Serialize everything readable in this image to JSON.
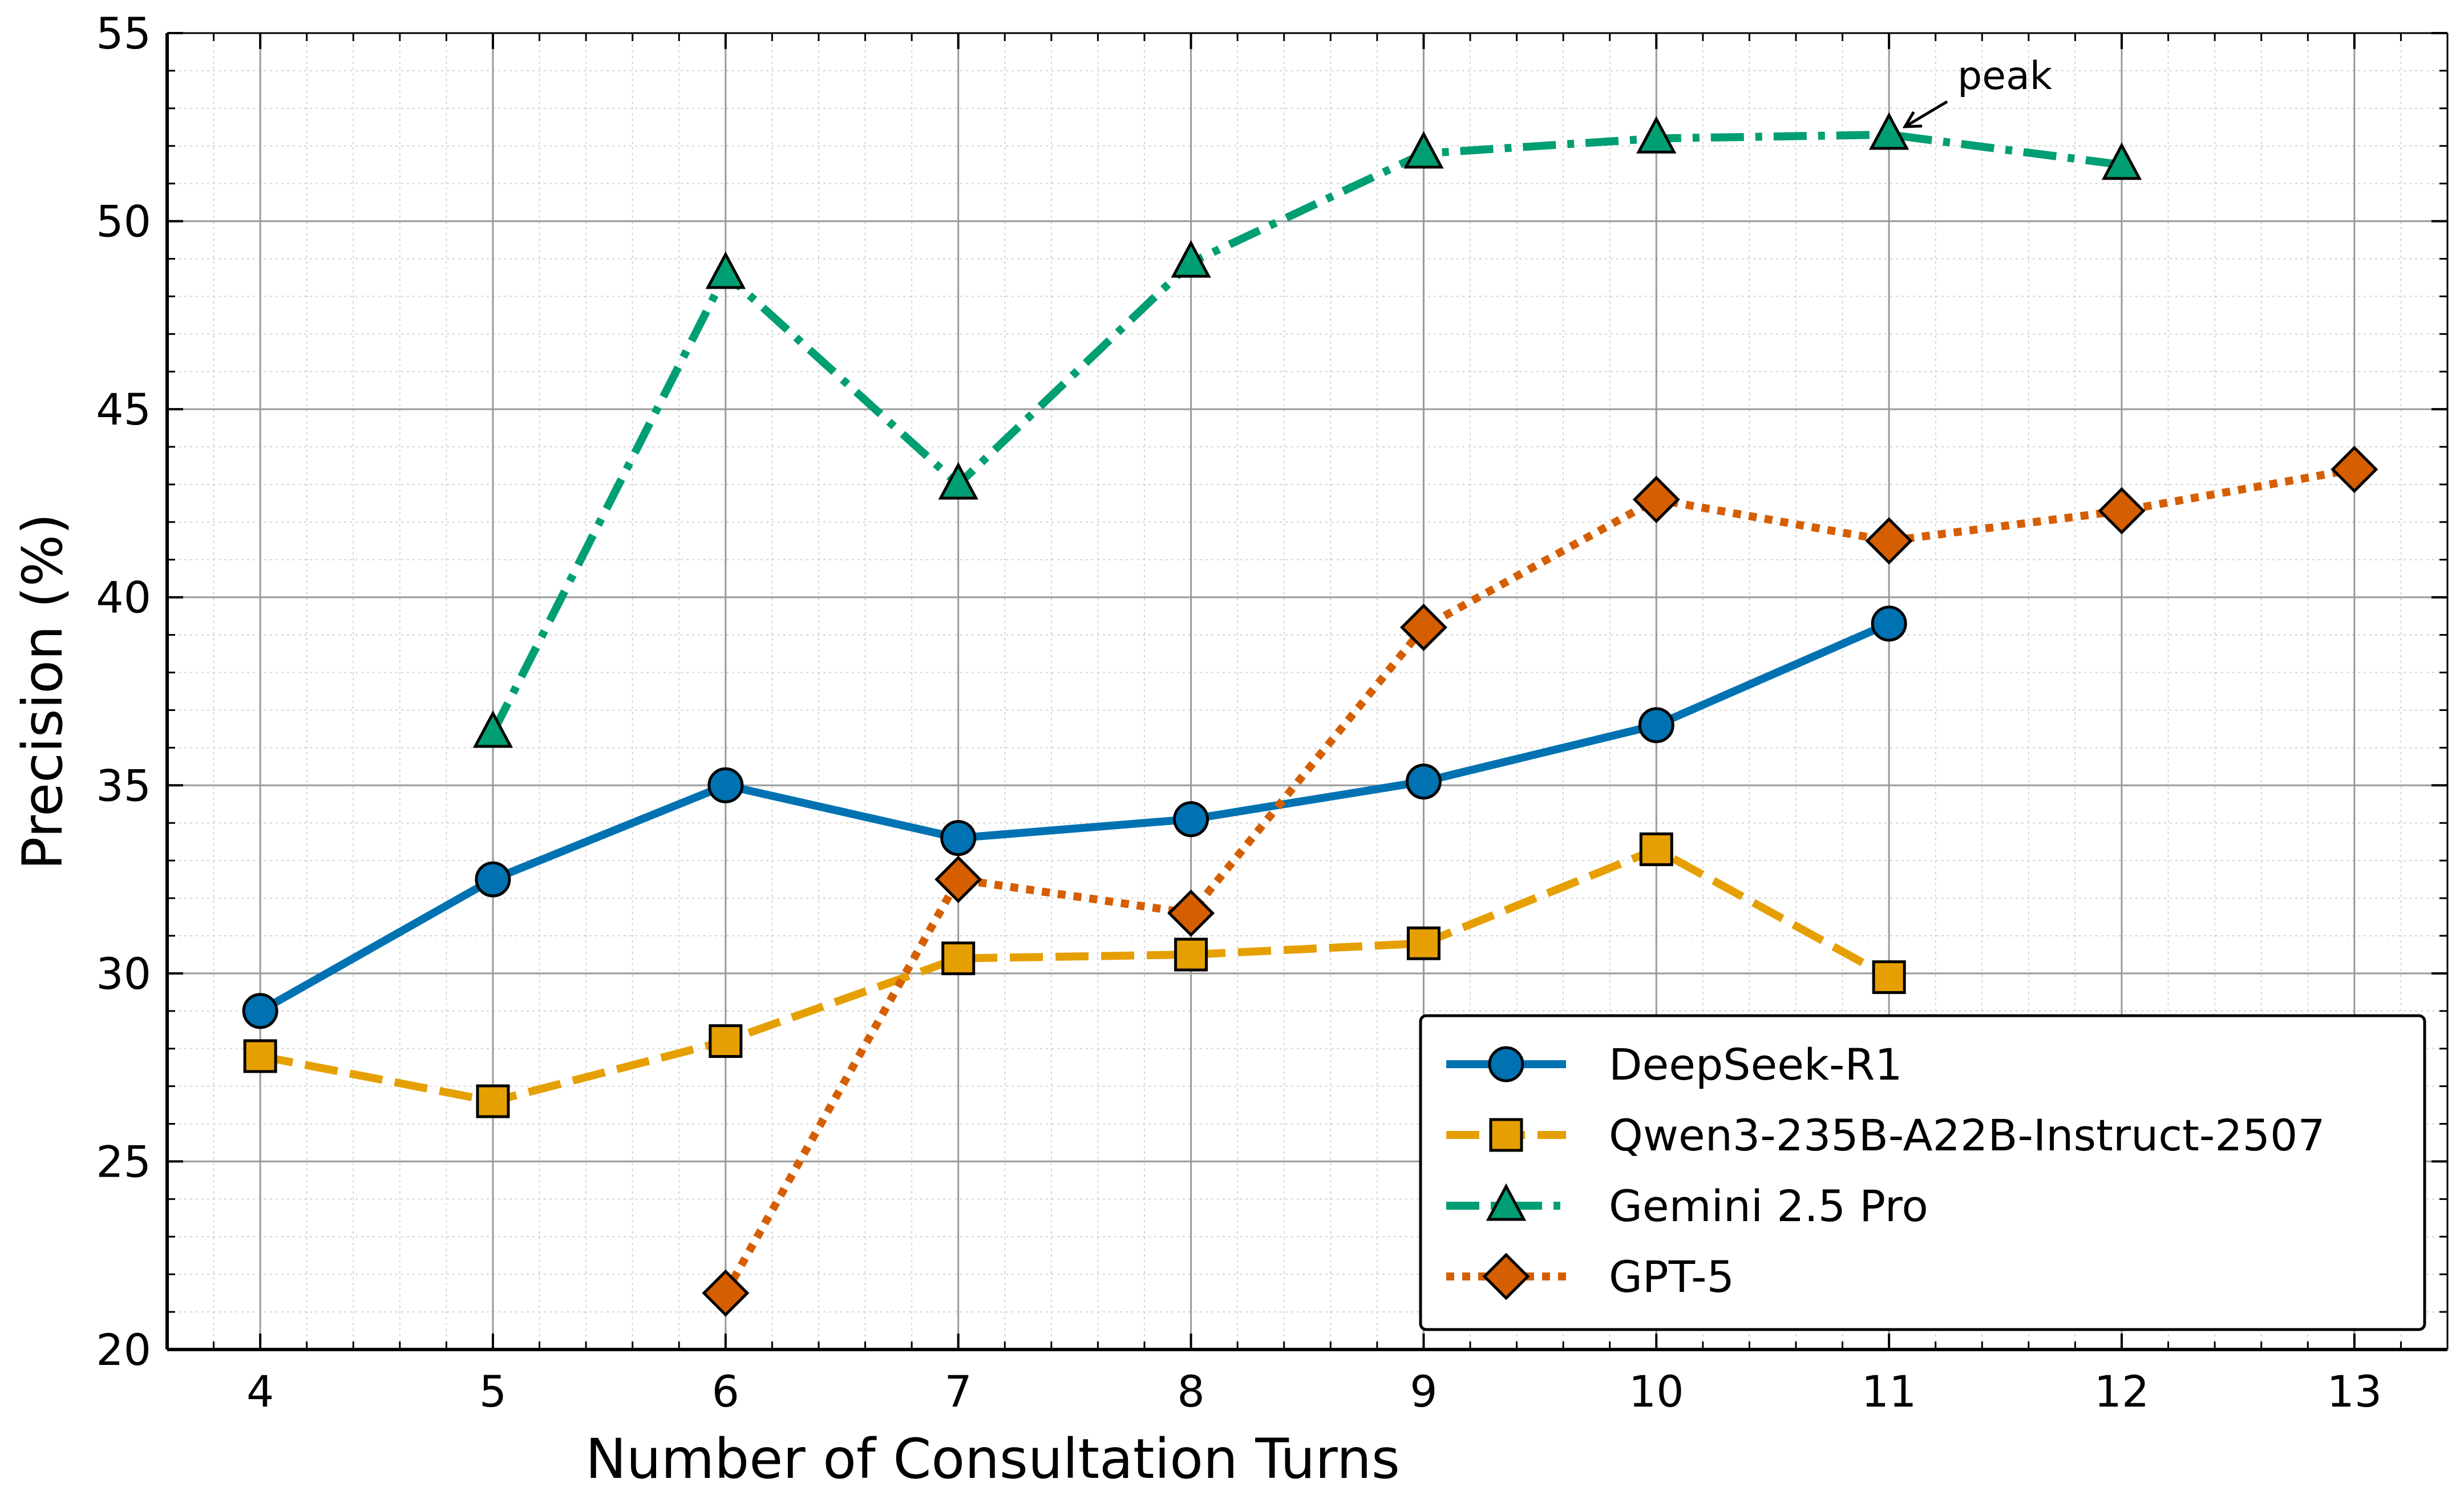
{
  "chart_data": {
    "type": "line",
    "title": "",
    "xlabel": "Number of Consultation Turns",
    "ylabel": "Precision (%)",
    "xlim": [
      3.6,
      13.4
    ],
    "ylim": [
      20,
      55
    ],
    "xticks": [
      4,
      5,
      6,
      7,
      8,
      9,
      10,
      11,
      12,
      13
    ],
    "yticks": [
      20,
      25,
      30,
      35,
      40,
      45,
      50,
      55
    ],
    "grid": true,
    "legend_position": "lower-right",
    "series": [
      {
        "name": "DeepSeek-R1",
        "color": "#0072B2",
        "marker": "circle",
        "linestyle": "solid",
        "x": [
          4,
          5,
          6,
          7,
          8,
          9,
          10,
          11
        ],
        "values": [
          29.0,
          32.5,
          35.0,
          33.6,
          34.1,
          35.1,
          36.6,
          39.3
        ]
      },
      {
        "name": "Qwen3-235B-A22B-Instruct-2507",
        "color": "#E69F00",
        "marker": "square",
        "linestyle": "dashed",
        "x": [
          4,
          5,
          6,
          7,
          8,
          9,
          10,
          11
        ],
        "values": [
          27.8,
          26.6,
          28.2,
          30.4,
          30.5,
          30.8,
          33.3,
          29.9
        ]
      },
      {
        "name": "Gemini 2.5 Pro",
        "color": "#009E73",
        "marker": "triangle",
        "linestyle": "dashdot",
        "x": [
          5,
          6,
          7,
          8,
          9,
          10,
          11,
          12
        ],
        "values": [
          36.4,
          48.6,
          43.0,
          48.9,
          51.8,
          52.2,
          52.3,
          51.5
        ]
      },
      {
        "name": "GPT-5",
        "color": "#D55E00",
        "marker": "diamond",
        "linestyle": "dotted",
        "x": [
          6,
          7,
          8,
          9,
          10,
          11,
          12,
          13
        ],
        "values": [
          21.5,
          32.5,
          31.6,
          39.2,
          42.6,
          41.5,
          42.3,
          43.4
        ]
      }
    ],
    "annotations": [
      {
        "text": "peak",
        "x": 11,
        "y": 52.3,
        "series": "Gemini 2.5 Pro"
      }
    ]
  }
}
